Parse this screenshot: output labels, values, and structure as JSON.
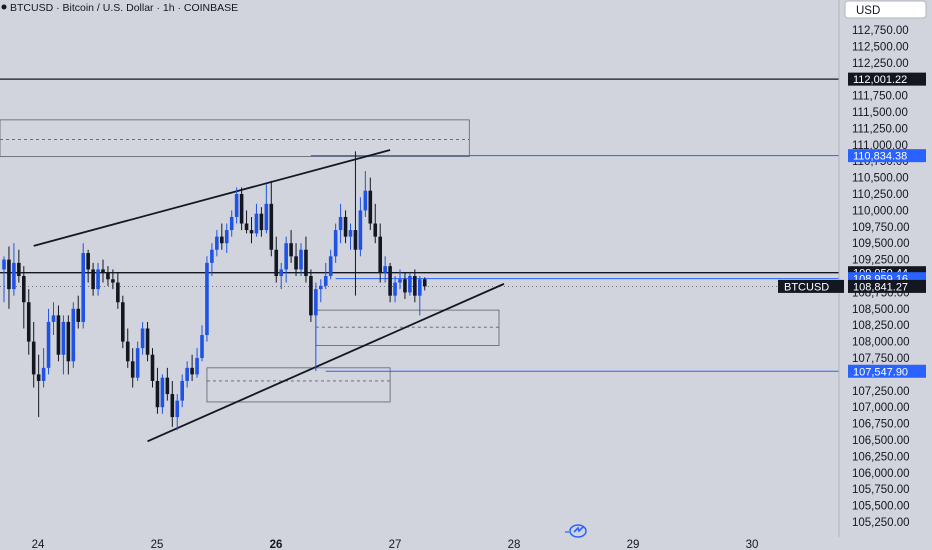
{
  "header": {
    "title": "BTCUSD · Bitcoin / U.S. Dollar · 1h · COINBASE",
    "currency_button": "USD"
  },
  "footer": {
    "watermark_icon": "tradingview-logo-icon"
  },
  "colors": {
    "background": "#d1d4dc",
    "candle": "#131722",
    "up_candle_blue": "#1e53e5",
    "accent_blue": "#2962ff",
    "text": "#131722"
  },
  "chart_data": {
    "type": "candlestick",
    "symbol": "BTCUSD",
    "interval": "1h",
    "exchange": "COINBASE",
    "ylim": [
      105100,
      113150
    ],
    "y_ticks": [
      "112,750.00",
      "112,500.00",
      "112,250.00",
      "111,750.00",
      "111,500.00",
      "111,250.00",
      "111,000.00",
      "110,750.00",
      "110,500.00",
      "110,250.00",
      "110,000.00",
      "109,750.00",
      "109,500.00",
      "109,250.00",
      "108,750.00",
      "108,500.00",
      "108,250.00",
      "108,000.00",
      "107,750.00",
      "107,250.00",
      "107,000.00",
      "106,750.00",
      "106,500.00",
      "106,250.00",
      "106,000.00",
      "105,750.00",
      "105,500.00",
      "105,250.00"
    ],
    "y_tick_values": [
      112750,
      112500,
      112250,
      111750,
      111500,
      111250,
      111000,
      110750,
      110500,
      110250,
      110000,
      109750,
      109500,
      109250,
      108750,
      108500,
      108250,
      108000,
      107750,
      107250,
      107000,
      106750,
      106500,
      106250,
      106000,
      105750,
      105500,
      105250
    ],
    "x_ticks": [
      "24",
      "25",
      "26",
      "27",
      "28",
      "29",
      "30"
    ],
    "x_tick_bold": [
      false,
      false,
      true,
      false,
      false,
      false,
      false
    ],
    "price_tags": [
      {
        "label": "112,001.22",
        "value": 112001.22,
        "style": "black"
      },
      {
        "label": "110,834.38",
        "value": 110834.38,
        "style": "blue"
      },
      {
        "label": "109,050.44",
        "value": 109050.44,
        "style": "black"
      },
      {
        "label": "108,959.16",
        "value": 108959.16,
        "style": "blue"
      },
      {
        "label": "108,841.27",
        "value": 108841.27,
        "style": "black"
      },
      {
        "label": "107,547.90",
        "value": 107547.9,
        "style": "blue"
      }
    ],
    "symbol_tag": "BTCUSD",
    "horizontal_lines": [
      {
        "value": 112001.22,
        "color": "#131722",
        "from_bar": -4
      },
      {
        "value": 109050.44,
        "color": "#131722",
        "from_bar": -4
      },
      {
        "value": 108959.16,
        "color": "#2962ff",
        "from_bar": 67
      },
      {
        "value": 110834.38,
        "color": "#2962ff",
        "from_bar": 62
      },
      {
        "value": 107547.9,
        "color": "#2962ff",
        "from_bar": 65
      }
    ],
    "boxes": [
      {
        "start": -4,
        "end": 94,
        "top": 111380,
        "bottom": 110820,
        "mid": 111080
      },
      {
        "start": 41,
        "end": 78,
        "top": 107600,
        "bottom": 107080,
        "mid": 107400
      },
      {
        "start": 63,
        "end": 100,
        "top": 108480,
        "bottom": 107940,
        "mid": 108220
      }
    ],
    "trendlines": [
      {
        "x1": 6,
        "y1": 109460,
        "x2": 78,
        "y2": 110920
      },
      {
        "x1": 29,
        "y1": 106480,
        "x2": 101,
        "y2": 108880
      }
    ],
    "candles": [
      {
        "o": 109100,
        "h": 109300,
        "l": 108600,
        "c": 109250
      },
      {
        "o": 109250,
        "h": 109450,
        "l": 108500,
        "c": 108800
      },
      {
        "o": 108800,
        "h": 109500,
        "l": 108700,
        "c": 109200
      },
      {
        "o": 109200,
        "h": 109400,
        "l": 108900,
        "c": 109000
      },
      {
        "o": 109000,
        "h": 109150,
        "l": 108200,
        "c": 108600
      },
      {
        "o": 108600,
        "h": 108800,
        "l": 107800,
        "c": 108000
      },
      {
        "o": 108000,
        "h": 108300,
        "l": 107300,
        "c": 107500
      },
      {
        "o": 107500,
        "h": 107800,
        "l": 106850,
        "c": 107400
      },
      {
        "o": 107400,
        "h": 107900,
        "l": 107300,
        "c": 107600
      },
      {
        "o": 107600,
        "h": 108500,
        "l": 107500,
        "c": 108300
      },
      {
        "o": 108300,
        "h": 108600,
        "l": 108100,
        "c": 108400
      },
      {
        "o": 108400,
        "h": 108550,
        "l": 107700,
        "c": 107800
      },
      {
        "o": 107800,
        "h": 108400,
        "l": 107500,
        "c": 108300
      },
      {
        "o": 108300,
        "h": 108400,
        "l": 107500,
        "c": 107700
      },
      {
        "o": 107700,
        "h": 108600,
        "l": 107600,
        "c": 108500
      },
      {
        "o": 108500,
        "h": 108700,
        "l": 108200,
        "c": 108300
      },
      {
        "o": 108300,
        "h": 109500,
        "l": 108200,
        "c": 109350
      },
      {
        "o": 109350,
        "h": 109400,
        "l": 108900,
        "c": 109100
      },
      {
        "o": 109100,
        "h": 109200,
        "l": 108700,
        "c": 108800
      },
      {
        "o": 108800,
        "h": 109200,
        "l": 108700,
        "c": 109100
      },
      {
        "o": 109100,
        "h": 109250,
        "l": 108900,
        "c": 109050
      },
      {
        "o": 109050,
        "h": 109150,
        "l": 108850,
        "c": 108950
      },
      {
        "o": 108950,
        "h": 109100,
        "l": 108800,
        "c": 108900
      },
      {
        "o": 108900,
        "h": 109050,
        "l": 108500,
        "c": 108600
      },
      {
        "o": 108600,
        "h": 108700,
        "l": 107900,
        "c": 108000
      },
      {
        "o": 108000,
        "h": 108200,
        "l": 107600,
        "c": 107700
      },
      {
        "o": 107700,
        "h": 107900,
        "l": 107300,
        "c": 107450
      },
      {
        "o": 107450,
        "h": 108000,
        "l": 107400,
        "c": 107900
      },
      {
        "o": 107900,
        "h": 108300,
        "l": 107800,
        "c": 108200
      },
      {
        "o": 108200,
        "h": 108300,
        "l": 107700,
        "c": 107800
      },
      {
        "o": 107800,
        "h": 107900,
        "l": 107300,
        "c": 107400
      },
      {
        "o": 107400,
        "h": 107600,
        "l": 106900,
        "c": 107000
      },
      {
        "o": 107000,
        "h": 107500,
        "l": 106900,
        "c": 107450
      },
      {
        "o": 107450,
        "h": 107600,
        "l": 107100,
        "c": 107200
      },
      {
        "o": 107200,
        "h": 107400,
        "l": 106700,
        "c": 106850
      },
      {
        "o": 106850,
        "h": 107200,
        "l": 106650,
        "c": 107100
      },
      {
        "o": 107100,
        "h": 107500,
        "l": 107000,
        "c": 107400
      },
      {
        "o": 107400,
        "h": 107700,
        "l": 107300,
        "c": 107600
      },
      {
        "o": 107600,
        "h": 107800,
        "l": 107400,
        "c": 107500
      },
      {
        "o": 107500,
        "h": 107900,
        "l": 107450,
        "c": 107750
      },
      {
        "o": 107750,
        "h": 108250,
        "l": 107700,
        "c": 108100
      },
      {
        "o": 108100,
        "h": 109300,
        "l": 108000,
        "c": 109200
      },
      {
        "o": 109200,
        "h": 109500,
        "l": 109000,
        "c": 109400
      },
      {
        "o": 109400,
        "h": 109700,
        "l": 109300,
        "c": 109600
      },
      {
        "o": 109600,
        "h": 109800,
        "l": 109400,
        "c": 109500
      },
      {
        "o": 109500,
        "h": 109800,
        "l": 109350,
        "c": 109700
      },
      {
        "o": 109700,
        "h": 110000,
        "l": 109600,
        "c": 109900
      },
      {
        "o": 109900,
        "h": 110350,
        "l": 109800,
        "c": 110250
      },
      {
        "o": 110250,
        "h": 110350,
        "l": 109700,
        "c": 109800
      },
      {
        "o": 109800,
        "h": 110000,
        "l": 109650,
        "c": 109700
      },
      {
        "o": 109700,
        "h": 109900,
        "l": 109500,
        "c": 109650
      },
      {
        "o": 109650,
        "h": 110100,
        "l": 109600,
        "c": 109950
      },
      {
        "o": 109950,
        "h": 110050,
        "l": 109600,
        "c": 109700
      },
      {
        "o": 109700,
        "h": 110400,
        "l": 109650,
        "c": 110100
      },
      {
        "o": 110100,
        "h": 110450,
        "l": 109300,
        "c": 109400
      },
      {
        "o": 109400,
        "h": 109600,
        "l": 108900,
        "c": 109000
      },
      {
        "o": 109000,
        "h": 109200,
        "l": 108800,
        "c": 109100
      },
      {
        "o": 109100,
        "h": 109600,
        "l": 108900,
        "c": 109500
      },
      {
        "o": 109500,
        "h": 109700,
        "l": 109200,
        "c": 109300
      },
      {
        "o": 109300,
        "h": 109500,
        "l": 109000,
        "c": 109100
      },
      {
        "o": 109100,
        "h": 109500,
        "l": 109000,
        "c": 109400
      },
      {
        "o": 109400,
        "h": 109600,
        "l": 108900,
        "c": 109000
      },
      {
        "o": 109000,
        "h": 109100,
        "l": 108300,
        "c": 108400
      },
      {
        "o": 108400,
        "h": 108900,
        "l": 107550,
        "c": 108800
      },
      {
        "o": 108800,
        "h": 108950,
        "l": 108600,
        "c": 108850
      },
      {
        "o": 108850,
        "h": 109200,
        "l": 108800,
        "c": 109000
      },
      {
        "o": 109000,
        "h": 109400,
        "l": 108950,
        "c": 109300
      },
      {
        "o": 109300,
        "h": 109800,
        "l": 109200,
        "c": 109700
      },
      {
        "o": 109700,
        "h": 110100,
        "l": 109500,
        "c": 109900
      },
      {
        "o": 109900,
        "h": 110000,
        "l": 109500,
        "c": 109600
      },
      {
        "o": 109600,
        "h": 109800,
        "l": 109400,
        "c": 109700
      },
      {
        "o": 109700,
        "h": 110900,
        "l": 108700,
        "c": 109400
      },
      {
        "o": 109400,
        "h": 110200,
        "l": 109300,
        "c": 110000
      },
      {
        "o": 110000,
        "h": 110600,
        "l": 109900,
        "c": 110300
      },
      {
        "o": 110300,
        "h": 110500,
        "l": 109700,
        "c": 109800
      },
      {
        "o": 109800,
        "h": 110100,
        "l": 109500,
        "c": 109600
      },
      {
        "o": 109600,
        "h": 109800,
        "l": 108900,
        "c": 109050
      },
      {
        "o": 109050,
        "h": 109300,
        "l": 108900,
        "c": 109150
      },
      {
        "o": 109150,
        "h": 109200,
        "l": 108600,
        "c": 108700
      },
      {
        "o": 108700,
        "h": 109000,
        "l": 108600,
        "c": 108900
      },
      {
        "o": 108900,
        "h": 109100,
        "l": 108800,
        "c": 108950
      },
      {
        "o": 108950,
        "h": 109050,
        "l": 108650,
        "c": 108750
      },
      {
        "o": 108750,
        "h": 109050,
        "l": 108700,
        "c": 109000
      },
      {
        "o": 109000,
        "h": 109100,
        "l": 108600,
        "c": 108700
      },
      {
        "o": 108700,
        "h": 109000,
        "l": 108400,
        "c": 108950
      },
      {
        "o": 108950,
        "h": 108980,
        "l": 108780,
        "c": 108841.27
      }
    ]
  }
}
